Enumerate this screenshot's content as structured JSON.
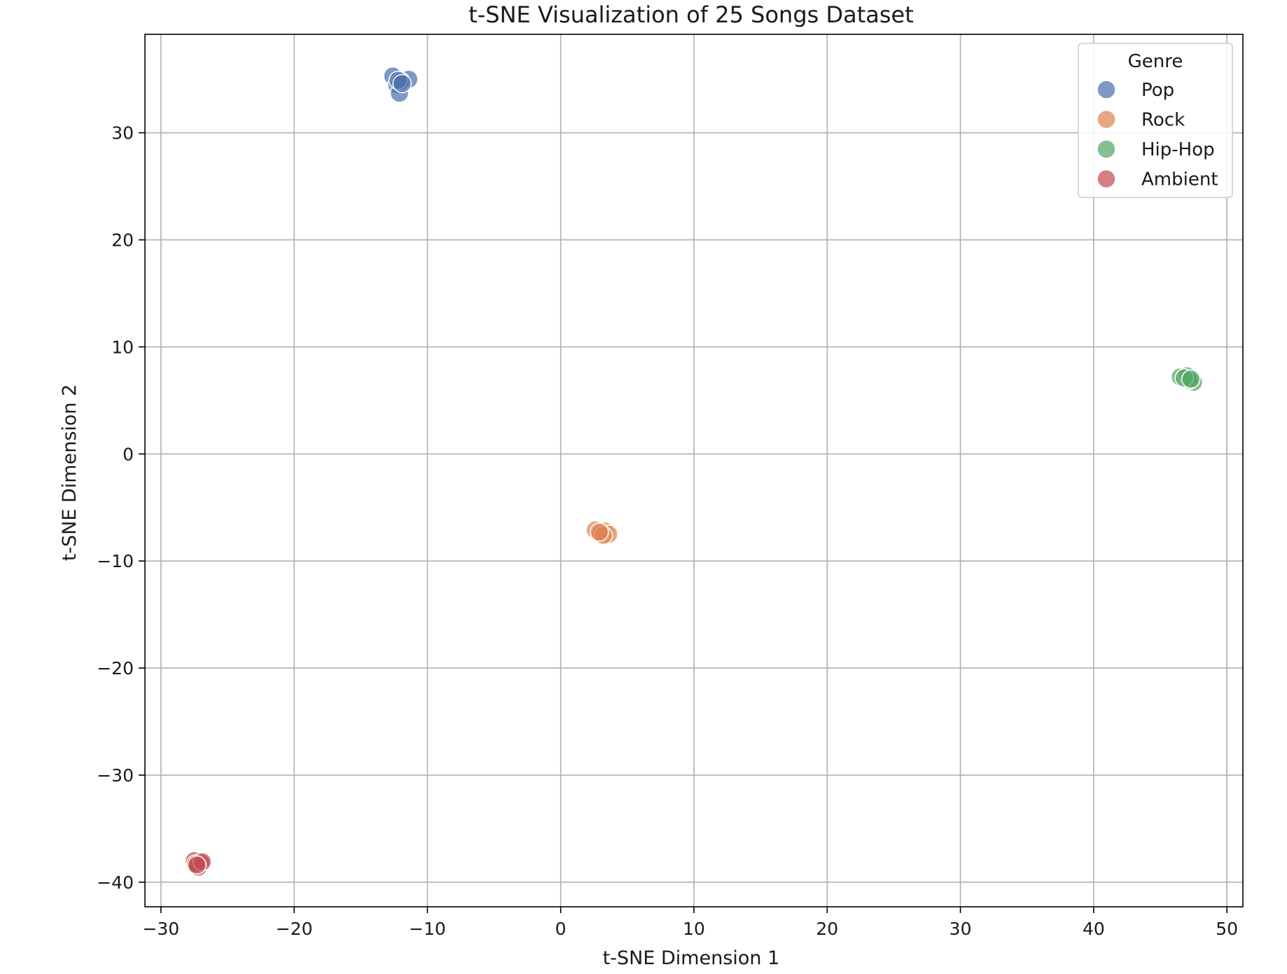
{
  "chart_data": {
    "type": "scatter",
    "title": "t-SNE Visualization of 25 Songs Dataset",
    "xlabel": "t-SNE Dimension 1",
    "ylabel": "t-SNE Dimension 2",
    "xlim": [
      -31.2,
      51.2
    ],
    "ylim": [
      -42.3,
      39.2
    ],
    "xticks": [
      -30,
      -20,
      -10,
      0,
      10,
      20,
      30,
      40,
      50
    ],
    "yticks": [
      -40,
      -30,
      -20,
      -10,
      0,
      10,
      20,
      30
    ],
    "xtick_labels": [
      "−30",
      "−20",
      "−10",
      "0",
      "10",
      "20",
      "30",
      "40",
      "50"
    ],
    "ytick_labels": [
      "−40",
      "−30",
      "−20",
      "−10",
      "0",
      "10",
      "20",
      "30"
    ],
    "grid": true,
    "legend": {
      "title": "Genre",
      "placement": "top-right"
    },
    "series": [
      {
        "name": "Pop",
        "color": "#4c72b0",
        "points": [
          [
            -12.6,
            35.3
          ],
          [
            -11.4,
            35.0
          ],
          [
            -12.3,
            34.5
          ],
          [
            -12.1,
            33.7
          ],
          [
            -12.0,
            34.8
          ],
          [
            -12.2,
            34.9
          ],
          [
            -11.9,
            34.6
          ]
        ]
      },
      {
        "name": "Rock",
        "color": "#dd8452",
        "points": [
          [
            2.6,
            -7.1
          ],
          [
            3.3,
            -7.2
          ],
          [
            3.6,
            -7.5
          ],
          [
            3.0,
            -7.4
          ],
          [
            3.2,
            -7.6
          ],
          [
            2.9,
            -7.3
          ]
        ]
      },
      {
        "name": "Hip-Hop",
        "color": "#55a868",
        "points": [
          [
            46.5,
            7.2
          ],
          [
            47.0,
            7.3
          ],
          [
            47.5,
            6.7
          ],
          [
            47.2,
            6.9
          ],
          [
            46.8,
            7.1
          ],
          [
            47.3,
            7.0
          ]
        ]
      },
      {
        "name": "Ambient",
        "color": "#c44e52",
        "points": [
          [
            -27.5,
            -38.0
          ],
          [
            -27.0,
            -38.2
          ],
          [
            -27.2,
            -38.6
          ],
          [
            -27.4,
            -38.3
          ],
          [
            -26.9,
            -38.1
          ],
          [
            -27.3,
            -38.4
          ]
        ]
      }
    ]
  }
}
